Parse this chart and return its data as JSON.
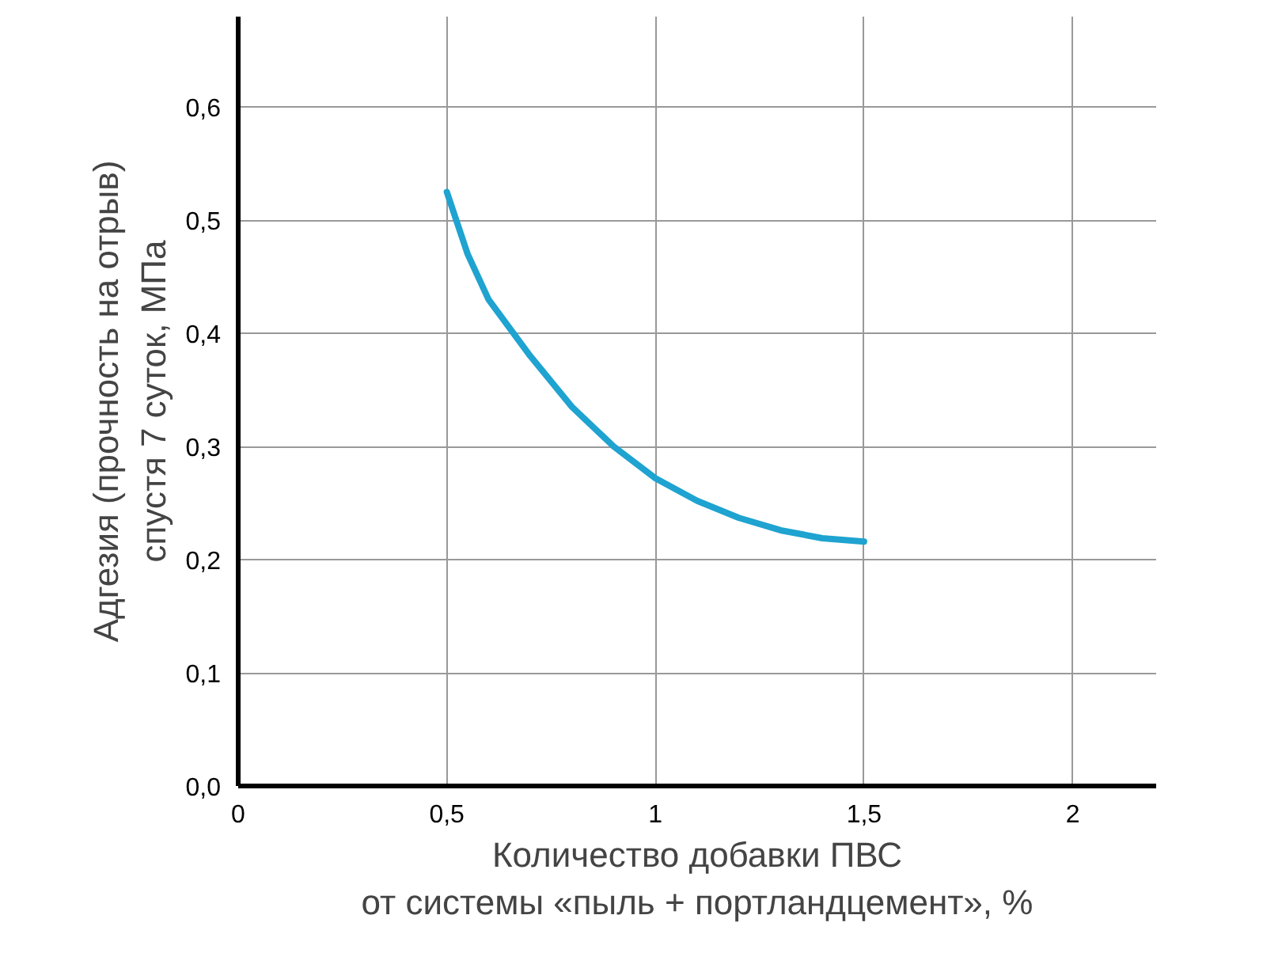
{
  "chart_data": {
    "type": "line",
    "xlabel": "Количество добавки ПВС\nот системы «пыль + портландцемент», %",
    "ylabel": "Адгезия (прочность на отрыв)\nспустя 7 суток, МПа",
    "x": [
      0.5,
      0.55,
      0.6,
      0.7,
      0.8,
      0.9,
      1.0,
      1.1,
      1.2,
      1.3,
      1.4,
      1.5
    ],
    "series": [
      {
        "color": "#1fa3d0",
        "values": [
          0.525,
          0.47,
          0.43,
          0.38,
          0.335,
          0.3,
          0.272,
          0.252,
          0.237,
          0.226,
          0.219,
          0.216
        ]
      }
    ],
    "xlim": [
      0,
      2.2
    ],
    "ylim": [
      0,
      0.68
    ],
    "xticks": [
      0,
      {
        "value": 0.5,
        "label": "0,5"
      },
      1,
      {
        "value": 1.5,
        "label": "1,5"
      },
      2
    ],
    "yticks": [
      {
        "value": 0,
        "label": "0,0"
      },
      {
        "value": 0.1,
        "label": "0,1"
      },
      {
        "value": 0.2,
        "label": "0,2"
      },
      {
        "value": 0.3,
        "label": "0,3"
      },
      {
        "value": 0.4,
        "label": "0,4"
      },
      {
        "value": 0.5,
        "label": "0,5"
      },
      {
        "value": 0.6,
        "label": "0,6"
      }
    ],
    "grid": true,
    "marker": "none",
    "line_style": "solid"
  }
}
